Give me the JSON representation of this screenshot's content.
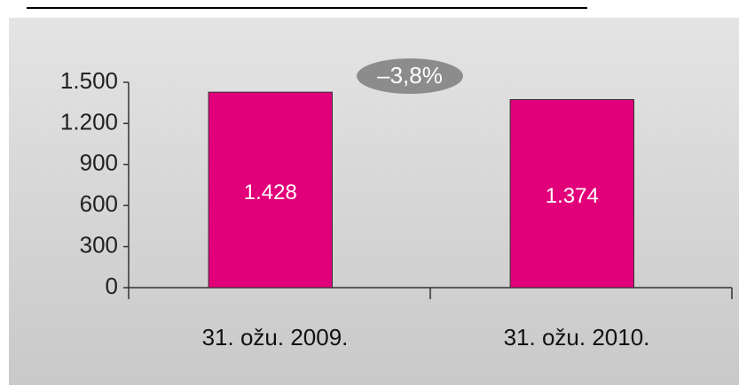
{
  "chart_data": {
    "type": "bar",
    "categories": [
      "31. ožu. 2009.",
      "31. ožu. 2010."
    ],
    "values": [
      1428,
      1374
    ],
    "value_labels": [
      "1.428",
      "1.374"
    ],
    "color": "#e2007a",
    "ylim": [
      0,
      1500
    ],
    "yticks": [
      0,
      300,
      600,
      900,
      {
        "value": 1200,
        "label": "1.200"
      },
      {
        "value": 1500,
        "label": "1.500"
      }
    ],
    "annotation": "–3,8%"
  }
}
